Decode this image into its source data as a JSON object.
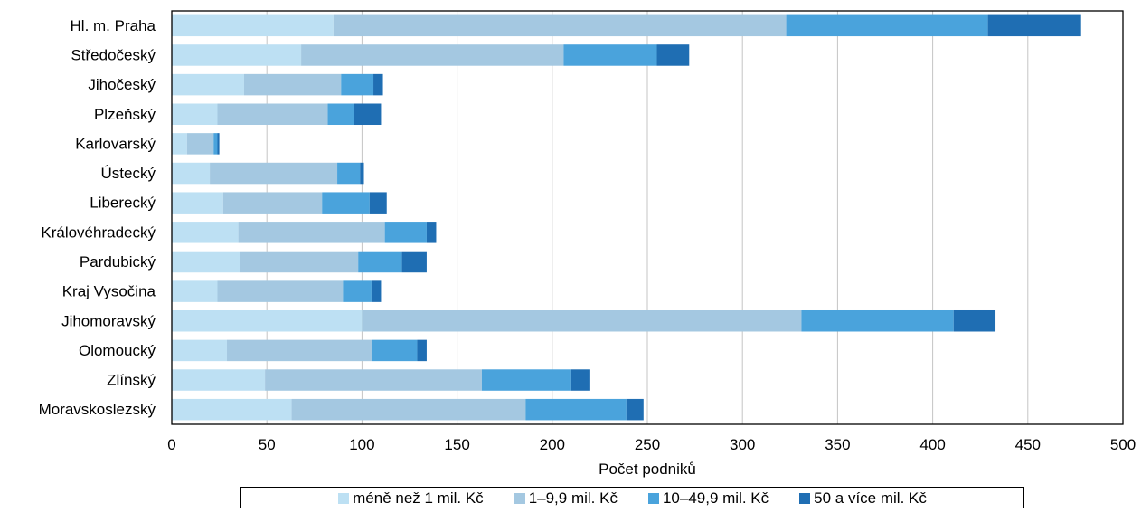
{
  "chart_data": {
    "type": "bar",
    "orientation": "horizontal",
    "stacked": true,
    "categories": [
      "Hl. m. Praha",
      "Středočeský",
      "Jihočeský",
      "Plzeňský",
      "Karlovarský",
      "Ústecký",
      "Liberecký",
      "Královéhradecký",
      "Pardubický",
      "Kraj Vysočina",
      "Jihomoravský",
      "Olomoucký",
      "Zlínský",
      "Moravskoslezský"
    ],
    "series": [
      {
        "name": "méně než 1 mil. Kč",
        "color": "#bde0f3",
        "values": [
          85,
          68,
          38,
          24,
          8,
          20,
          27,
          35,
          36,
          24,
          100,
          29,
          49,
          63
        ]
      },
      {
        "name": "1–9,9 mil. Kč",
        "color": "#a4c8e1",
        "values": [
          238,
          138,
          51,
          58,
          14,
          67,
          52,
          77,
          62,
          66,
          231,
          76,
          114,
          123
        ]
      },
      {
        "name": "10–49,9 mil. Kč",
        "color": "#4aa3dc",
        "values": [
          106,
          49,
          17,
          14,
          2,
          12,
          25,
          22,
          23,
          15,
          80,
          24,
          47,
          53
        ]
      },
      {
        "name": "50 a více mil. Kč",
        "color": "#1f6eb3",
        "values": [
          49,
          17,
          5,
          14,
          1,
          2,
          9,
          5,
          13,
          5,
          22,
          5,
          10,
          9
        ]
      }
    ],
    "xlabel": "Počet podniků",
    "ylabel": "",
    "xlim": [
      0,
      500
    ],
    "xticks": [
      0,
      50,
      100,
      150,
      200,
      250,
      300,
      350,
      400,
      450,
      500
    ],
    "grid": true,
    "legend_position": "bottom"
  }
}
